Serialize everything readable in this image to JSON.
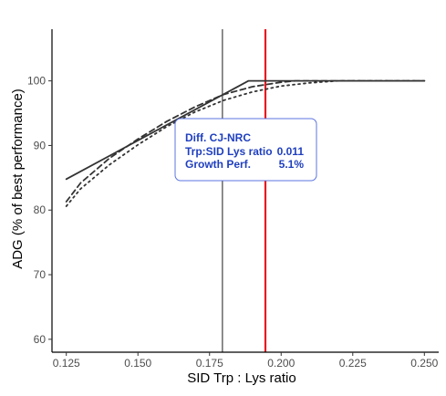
{
  "chart_data": {
    "type": "line",
    "title": "",
    "xlabel": "SID Trp : Lys ratio",
    "ylabel": "ADG (% of best performance)",
    "xlim": [
      0.12,
      0.255
    ],
    "ylim": [
      58,
      108
    ],
    "xticks": [
      0.125,
      0.15,
      0.175,
      0.2,
      0.225,
      0.25
    ],
    "xtick_labels": [
      "0.125",
      "0.150",
      "0.175",
      "0.200",
      "0.225",
      "0.250"
    ],
    "yticks": [
      60,
      70,
      80,
      90,
      100
    ],
    "ytick_labels": [
      "60",
      "70",
      "80",
      "90",
      "100"
    ],
    "grid": false,
    "series": [
      {
        "style": "solid",
        "x": [
          0.125,
          0.1886,
          0.25
        ],
        "y": [
          84.8,
          100,
          100
        ]
      },
      {
        "style": "dashed",
        "x": [
          0.125,
          0.13,
          0.14,
          0.15,
          0.16,
          0.17,
          0.18,
          0.19,
          0.2,
          0.205,
          0.21,
          0.25
        ],
        "y": [
          81.3,
          84.2,
          88.0,
          91.0,
          93.7,
          96.0,
          97.9,
          99.1,
          99.8,
          100,
          100,
          100
        ]
      },
      {
        "style": "dotted",
        "x": [
          0.125,
          0.13,
          0.14,
          0.15,
          0.16,
          0.17,
          0.18,
          0.19,
          0.2,
          0.21,
          0.22,
          0.25
        ],
        "y": [
          80.6,
          83.3,
          87.0,
          90.1,
          92.9,
          95.2,
          97.0,
          98.3,
          99.2,
          99.7,
          100,
          100
        ]
      }
    ],
    "reference_lines": [
      {
        "x": 0.1795,
        "color": "#333333"
      },
      {
        "x": 0.1945,
        "color": "#e8191f"
      }
    ],
    "annotation": {
      "title": "Diff. CJ-NRC",
      "rows": [
        {
          "label": "Trp:SID Lys ratio",
          "value": "0.011"
        },
        {
          "label": "Growth Perf.",
          "value": "5.1%"
        }
      ],
      "text_color": "#1f3fbf",
      "border_color": "#5b74e0"
    },
    "colors": {
      "series": "#333333",
      "axis": "#000000",
      "tick_text": "#4d4d4d"
    }
  }
}
